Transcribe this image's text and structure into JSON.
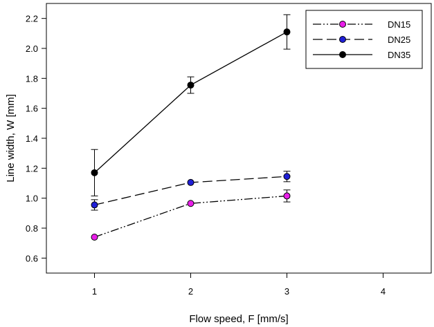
{
  "chart_data": {
    "type": "line",
    "xlabel": "Flow speed, F [mm/s]",
    "ylabel": "Line width, W [mm]",
    "xlim": [
      0.5,
      4.5
    ],
    "ylim": [
      0.5,
      2.3
    ],
    "xticks": [
      1,
      2,
      3,
      4
    ],
    "yticks": [
      0.6,
      0.8,
      1.0,
      1.2,
      1.4,
      1.6,
      1.8,
      2.0,
      2.2
    ],
    "ytick_labels": [
      "0.6",
      "0.8",
      "1.0",
      "1.2",
      "1.4",
      "1.6",
      "1.8",
      "2.0",
      "2.2"
    ],
    "grid": false,
    "legend_position": "top-right",
    "series": [
      {
        "name": "DN15",
        "x": [
          1,
          2,
          3
        ],
        "y": [
          0.74,
          0.965,
          1.015
        ],
        "error": [
          0.0,
          0.01,
          0.04
        ],
        "marker_color": "#e81ee8",
        "dash": "12,3,2,3,2,3"
      },
      {
        "name": "DN25",
        "x": [
          1,
          2,
          3
        ],
        "y": [
          0.955,
          1.105,
          1.145
        ],
        "error": [
          0.035,
          0.01,
          0.035
        ],
        "marker_color": "#1f1fd6",
        "dash": "14,6"
      },
      {
        "name": "DN35",
        "x": [
          1,
          2,
          3
        ],
        "y": [
          1.17,
          1.755,
          2.11
        ],
        "error": [
          0.155,
          0.055,
          0.115
        ],
        "marker_color": "#000000",
        "dash": ""
      }
    ]
  }
}
